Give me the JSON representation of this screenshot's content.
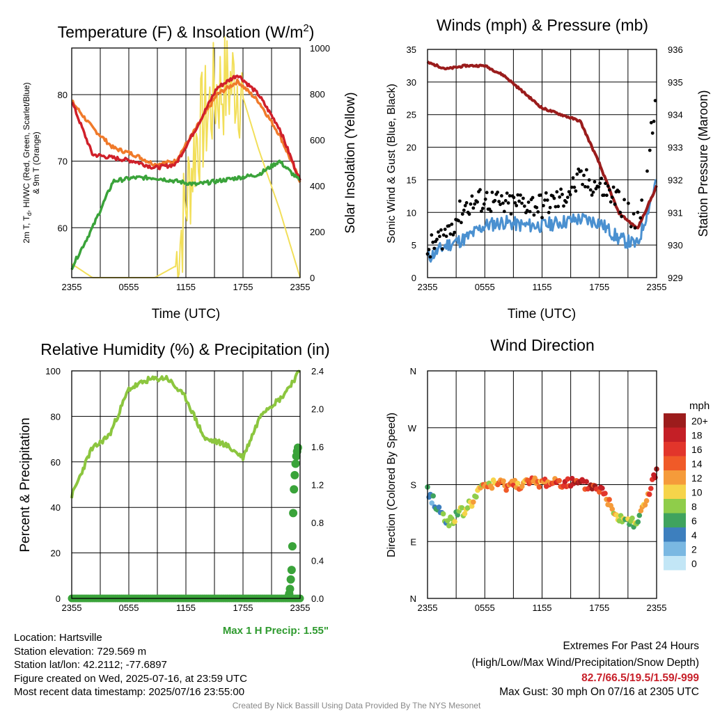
{
  "charts": {
    "temperature": {
      "title": "Temperature (F) & Insolation (W/m",
      "title_sup": "2",
      "title_close": ")",
      "ylabel_lines": [
        "2m T, T",
        "d",
        ", HI/WC (Red, Green, Scarlet/Blue)",
        "& 9m T (Orange)"
      ],
      "y2label": "Solar Insolation (Yellow)",
      "xlabel": "Time (UTC)"
    },
    "winds": {
      "title": "Winds (mph) & Pressure (mb)",
      "ylabel": "Sonic Wind & Gust (Blue, Black)",
      "y2label": "Station Pressure (Maroon)",
      "xlabel": "Time (UTC)"
    },
    "humidity": {
      "title": "Relative Humidity (%) & Precipitation (in)",
      "ylabel": "Percent & Precipitation",
      "note": "Max 1 H Precip: 1.55\""
    },
    "direction": {
      "title": "Wind Direction",
      "ylabel": "Direction (Colored By Speed)",
      "legend_title": "mph",
      "legend_labels": [
        "20+",
        "18",
        "16",
        "14",
        "12",
        "10",
        "8",
        "6",
        "4",
        "2",
        "0"
      ],
      "legend_colors": [
        "#9c1c1c",
        "#c41f26",
        "#e2352b",
        "#f05a28",
        "#f59b3a",
        "#f6d44a",
        "#8fcd4a",
        "#3fa35e",
        "#3d7fbe",
        "#7ab8e2",
        "#c2e6f6"
      ]
    }
  },
  "x_ticks": [
    "2355",
    "0555",
    "1155",
    "1755",
    "2355"
  ],
  "info": {
    "location": "Location: Hartsville",
    "elevation": "Station elevation: 729.569 m",
    "latlon": "Station lat/lon: 42.2112; -77.6897",
    "created": "Figure created on Wed, 2025-07-16, at 23:59 UTC",
    "recent": "Most recent data timestamp: 2025/07/16 23:55:00"
  },
  "extremes": {
    "title": "Extremes For Past 24 Hours",
    "subtitle": "(High/Low/Max Wind/Precipitation/Snow Depth)",
    "values": "82.7/66.5/19.5/1.59/-999",
    "gust": "Max Gust: 30 mph On 07/16 at 2305 UTC"
  },
  "credit": "Created By Nick Bassill Using Data Provided By The NYS Mesonet",
  "colors": {
    "temp": "#d0202a",
    "temp9m": "#f07a2a",
    "dewpoint": "#3aa33a",
    "solar": "#f2df5a",
    "wind": "#4a90d0",
    "gust": "#000000",
    "pressure": "#9a1c1c",
    "rh": "#8cc63f",
    "precip": "#3aa33a",
    "note": "#2e9a2e",
    "extremes": "#c8202a"
  },
  "chart_data": [
    {
      "type": "line",
      "title": "Temperature (F) & Insolation (W/m2)",
      "xlabel": "Time (UTC)",
      "ylabel": "2m T, Td, HI/WC (Red, Green, Scarlet/Blue) & 9m T (Orange)",
      "y2label": "Solar Insolation (Yellow)",
      "x": [
        "2355",
        "0355",
        "0555",
        "0755",
        "0955",
        "1155",
        "1355",
        "1555",
        "1755",
        "1955",
        "2155",
        "2355"
      ],
      "x_ticks": [
        "2355",
        "0555",
        "1155",
        "1755",
        "2355"
      ],
      "ylim": [
        52.5,
        87
      ],
      "y_ticks": [
        60,
        70,
        80
      ],
      "y2lim": [
        0,
        1000
      ],
      "y2_ticks": [
        0,
        200,
        400,
        600,
        800,
        1000
      ],
      "series": [
        {
          "name": "2m T",
          "axis": "y",
          "values": [
            79,
            71,
            70.5,
            70,
            69,
            69.5,
            75,
            81,
            83,
            80,
            75,
            67
          ]
        },
        {
          "name": "9m T",
          "axis": "y",
          "values": [
            79,
            75,
            72,
            71,
            69.5,
            70,
            75,
            80,
            82,
            79,
            74,
            67
          ]
        },
        {
          "name": "Td",
          "axis": "y",
          "values": [
            54,
            60,
            67,
            67.5,
            67.5,
            67,
            66.5,
            67,
            67.5,
            68,
            70,
            67
          ]
        },
        {
          "name": "Solar",
          "axis": "y2",
          "values": [
            60,
            0,
            0,
            0,
            0,
            50,
            600,
            820,
            860,
            560,
            300,
            0
          ]
        }
      ],
      "grid": true
    },
    {
      "type": "line",
      "title": "Winds (mph) & Pressure (mb)",
      "xlabel": "Time (UTC)",
      "ylabel": "Sonic Wind & Gust (Blue, Black)",
      "y2label": "Station Pressure (Maroon)",
      "x": [
        "2355",
        "0155",
        "0355",
        "0555",
        "0755",
        "0955",
        "1155",
        "1355",
        "1555",
        "1755",
        "1955",
        "2155",
        "2355"
      ],
      "x_ticks": [
        "2355",
        "0555",
        "1155",
        "1755",
        "2355"
      ],
      "ylim": [
        0,
        35
      ],
      "y_ticks": [
        0,
        5,
        10,
        15,
        20,
        25,
        30,
        35
      ],
      "y2lim": [
        929,
        936
      ],
      "y2_ticks": [
        929,
        930,
        931,
        932,
        933,
        934,
        935,
        936
      ],
      "series": [
        {
          "name": "Sonic Wind",
          "axis": "y",
          "values": [
            3,
            5,
            6,
            8,
            8.5,
            8,
            8,
            8.5,
            9,
            8.5,
            6,
            5,
            15
          ]
        },
        {
          "name": "Gust",
          "axis": "y",
          "values": [
            4,
            7,
            11,
            12,
            11,
            11.5,
            11,
            12,
            15,
            14,
            12,
            8,
            28
          ]
        },
        {
          "name": "Station Pressure",
          "axis": "y2",
          "values": [
            935.6,
            935.4,
            935.5,
            935.5,
            935.2,
            934.7,
            934.2,
            934.0,
            933.8,
            932.5,
            931,
            930.5,
            931.8
          ]
        }
      ],
      "grid": true
    },
    {
      "type": "line",
      "title": "Relative Humidity (%) & Precipitation (in)",
      "ylabel": "Percent & Precipitation",
      "x": [
        "2355",
        "0155",
        "0355",
        "0555",
        "0755",
        "0955",
        "1155",
        "1355",
        "1555",
        "1755",
        "1955",
        "2155",
        "2355"
      ],
      "x_ticks": [
        "2355",
        "0555",
        "1155",
        "1755",
        "2355"
      ],
      "ylim": [
        0,
        100
      ],
      "y_ticks": [
        0,
        20,
        40,
        60,
        80,
        100
      ],
      "y2lim": [
        0,
        2.4
      ],
      "y2_ticks": [
        0.0,
        0.4,
        0.8,
        1.2,
        1.6,
        2.0,
        2.4
      ],
      "series": [
        {
          "name": "RH",
          "axis": "y",
          "values": [
            45,
            65,
            72,
            92,
            96,
            97,
            88,
            70,
            68,
            62,
            82,
            88,
            100
          ]
        },
        {
          "name": "Precipitation",
          "axis": "y2",
          "values": [
            0,
            0,
            0,
            0,
            0,
            0,
            0,
            0,
            0,
            0,
            0,
            0.02,
            1.59
          ]
        }
      ],
      "annotation": "Max 1 H Precip: 1.55\"",
      "grid": true
    },
    {
      "type": "scatter",
      "title": "Wind Direction",
      "ylabel": "Direction (Colored By Speed)",
      "x_ticks": [
        "2355",
        "0555",
        "1155",
        "1755",
        "2355"
      ],
      "y_ticks": [
        "N",
        "E",
        "S",
        "W",
        "N"
      ],
      "ylim": [
        0,
        360
      ],
      "series": [
        {
          "name": "Direction",
          "x": [
            "2355",
            "0155",
            "0355",
            "0555",
            "0755",
            "0955",
            "1155",
            "1355",
            "1555",
            "1755",
            "1955",
            "2155",
            "2355"
          ],
          "values": [
            170,
            120,
            140,
            180,
            180,
            182,
            183,
            185,
            180,
            175,
            130,
            120,
            200
          ]
        }
      ],
      "color_legend": {
        "title": "mph",
        "labels": [
          "0",
          "2",
          "4",
          "6",
          "8",
          "10",
          "12",
          "14",
          "16",
          "18",
          "20+"
        ]
      },
      "grid": true
    }
  ]
}
